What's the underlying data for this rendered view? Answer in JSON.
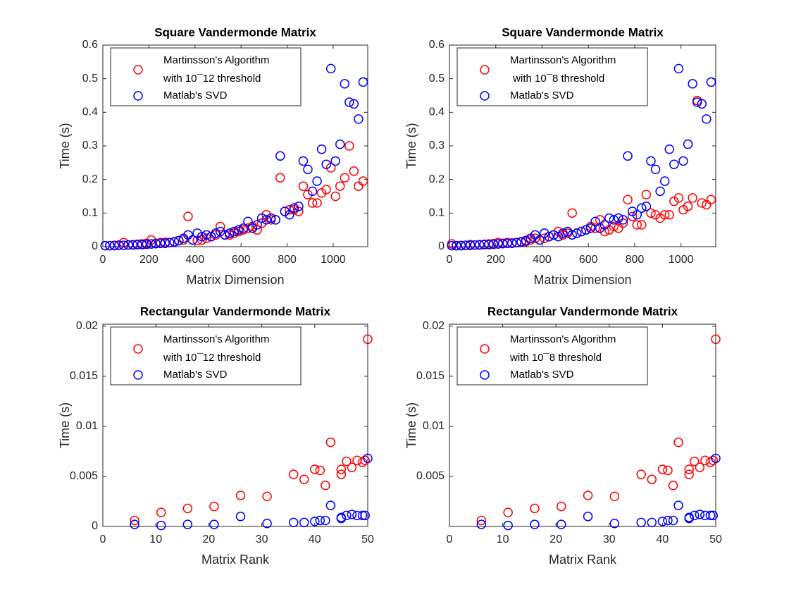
{
  "chart_data": [
    {
      "type": "scatter",
      "title": "Square Vandermonde Matrix",
      "xlabel": "Matrix Dimension",
      "ylabel": "Time (s)",
      "xlim": [
        0,
        1150
      ],
      "xticks": [
        0,
        200,
        400,
        600,
        800,
        1000
      ],
      "ylim": [
        0,
        0.6
      ],
      "yticks": [
        0,
        0.1,
        0.2,
        0.3,
        0.4,
        0.5,
        0.6
      ],
      "x": [
        10,
        30,
        50,
        70,
        90,
        110,
        130,
        150,
        170,
        190,
        210,
        230,
        250,
        270,
        290,
        310,
        330,
        350,
        370,
        390,
        410,
        430,
        450,
        470,
        490,
        510,
        530,
        550,
        570,
        590,
        610,
        630,
        650,
        670,
        690,
        710,
        730,
        750,
        770,
        790,
        810,
        830,
        850,
        870,
        890,
        910,
        930,
        950,
        970,
        990,
        1010,
        1030,
        1050,
        1070,
        1090,
        1110,
        1130
      ],
      "series": [
        {
          "name": "Martinsson's Algorithm\nwith 10¯12 threshold",
          "color": "#ff0000",
          "values": [
            0.003,
            0.003,
            0.004,
            0.005,
            0.012,
            0.005,
            0.006,
            0.007,
            0.008,
            0.01,
            0.02,
            0.01,
            0.012,
            0.013,
            0.012,
            0.015,
            0.018,
            0.02,
            0.09,
            0.02,
            0.018,
            0.02,
            0.025,
            0.03,
            0.035,
            0.06,
            0.035,
            0.035,
            0.04,
            0.045,
            0.05,
            0.055,
            0.06,
            0.05,
            0.07,
            0.095,
            0.08,
            0.08,
            0.205,
            0.105,
            0.11,
            0.11,
            0.105,
            0.18,
            0.155,
            0.13,
            0.13,
            0.16,
            0.17,
            0.235,
            0.15,
            0.18,
            0.205,
            0.3,
            0.225,
            0.18,
            0.195
          ]
        },
        {
          "name": "Matlab's SVD",
          "color": "#0000ff",
          "values": [
            0.003,
            0.003,
            0.003,
            0.004,
            0.004,
            0.005,
            0.005,
            0.006,
            0.006,
            0.007,
            0.008,
            0.009,
            0.01,
            0.01,
            0.012,
            0.014,
            0.018,
            0.025,
            0.035,
            0.02,
            0.04,
            0.03,
            0.035,
            0.03,
            0.04,
            0.045,
            0.035,
            0.04,
            0.045,
            0.05,
            0.055,
            0.075,
            0.055,
            0.065,
            0.085,
            0.08,
            0.085,
            0.08,
            0.27,
            0.105,
            0.095,
            0.115,
            0.12,
            0.255,
            0.23,
            0.165,
            0.195,
            0.29,
            0.245,
            0.53,
            0.255,
            0.305,
            0.485,
            0.43,
            0.425,
            0.38,
            0.49
          ]
        }
      ]
    },
    {
      "type": "scatter",
      "title": "Square Vandermonde Matrix",
      "xlabel": "Matrix Dimension",
      "ylabel": "Time (s)",
      "xlim": [
        0,
        1150
      ],
      "xticks": [
        0,
        200,
        400,
        600,
        800,
        1000
      ],
      "ylim": [
        0,
        0.6
      ],
      "yticks": [
        0,
        0.1,
        0.2,
        0.3,
        0.4,
        0.5,
        0.6
      ],
      "x": [
        10,
        30,
        50,
        70,
        90,
        110,
        130,
        150,
        170,
        190,
        210,
        230,
        250,
        270,
        290,
        310,
        330,
        350,
        370,
        390,
        410,
        430,
        450,
        470,
        490,
        510,
        530,
        550,
        570,
        590,
        610,
        630,
        650,
        670,
        690,
        710,
        730,
        750,
        770,
        790,
        810,
        830,
        850,
        870,
        890,
        910,
        930,
        950,
        970,
        990,
        1010,
        1030,
        1050,
        1070,
        1090,
        1110,
        1130
      ],
      "series": [
        {
          "name": "Martinsson's Algorithm\n with 10¯8 threshold",
          "color": "#ff0000",
          "values": [
            0.008,
            0.003,
            0.004,
            0.004,
            0.006,
            0.005,
            0.006,
            0.007,
            0.008,
            0.009,
            0.012,
            0.01,
            0.012,
            0.011,
            0.012,
            0.015,
            0.015,
            0.02,
            0.025,
            0.02,
            0.025,
            0.03,
            0.035,
            0.045,
            0.035,
            0.04,
            0.1,
            0.04,
            0.045,
            0.05,
            0.06,
            0.055,
            0.08,
            0.045,
            0.05,
            0.06,
            0.055,
            0.07,
            0.14,
            0.09,
            0.065,
            0.065,
            0.155,
            0.1,
            0.095,
            0.085,
            0.095,
            0.095,
            0.135,
            0.145,
            0.11,
            0.12,
            0.145,
            0.435,
            0.13,
            0.125,
            0.14
          ]
        },
        {
          "name": "Matlab's SVD",
          "color": "#0000ff",
          "values": [
            0.003,
            0.003,
            0.003,
            0.004,
            0.004,
            0.005,
            0.005,
            0.006,
            0.006,
            0.007,
            0.008,
            0.009,
            0.01,
            0.01,
            0.012,
            0.014,
            0.018,
            0.025,
            0.035,
            0.02,
            0.04,
            0.03,
            0.035,
            0.03,
            0.04,
            0.045,
            0.035,
            0.04,
            0.045,
            0.05,
            0.055,
            0.075,
            0.055,
            0.065,
            0.085,
            0.08,
            0.085,
            0.08,
            0.27,
            0.105,
            0.095,
            0.115,
            0.12,
            0.255,
            0.23,
            0.165,
            0.195,
            0.29,
            0.245,
            0.53,
            0.255,
            0.305,
            0.485,
            0.43,
            0.425,
            0.38,
            0.49
          ]
        }
      ]
    },
    {
      "type": "scatter",
      "title": "Rectangular Vandermonde Matrix",
      "xlabel": "Matrix Rank",
      "ylabel": "Time (s)",
      "xlim": [
        0,
        50
      ],
      "xticks": [
        0,
        10,
        20,
        30,
        40,
        50
      ],
      "ylim": [
        0,
        0.0202
      ],
      "yticks": [
        0,
        0.005,
        0.01,
        0.015,
        0.02
      ],
      "x": [
        6,
        11,
        16,
        21,
        26,
        31,
        36,
        38,
        40,
        41,
        42,
        43,
        45,
        45,
        46,
        47,
        48,
        49,
        49.5,
        50
      ],
      "series": [
        {
          "name": "Martinsson's Algorithm\nwith 10¯12 threshold",
          "color": "#ff0000",
          "values": [
            0.0006,
            0.0014,
            0.0018,
            0.002,
            0.0031,
            0.003,
            0.0052,
            0.0047,
            0.0057,
            0.0056,
            0.0041,
            0.0084,
            0.0052,
            0.0057,
            0.0065,
            0.0059,
            0.0066,
            0.0064,
            0.0066,
            0.0187
          ]
        },
        {
          "name": "Matlab's SVD",
          "color": "#0000ff",
          "values": [
            0.0002,
            0.0001,
            0.0002,
            0.0002,
            0.001,
            0.0003,
            0.0004,
            0.0004,
            0.0005,
            0.0006,
            0.0006,
            0.0021,
            0.0009,
            0.0008,
            0.0011,
            0.0012,
            0.0011,
            0.0011,
            0.0011,
            0.0068
          ]
        }
      ]
    },
    {
      "type": "scatter",
      "title": "Rectangular Vandermonde Matrix",
      "xlabel": "Matrix Rank",
      "ylabel": "Time (s)",
      "xlim": [
        0,
        50
      ],
      "xticks": [
        0,
        10,
        20,
        30,
        40,
        50
      ],
      "ylim": [
        0,
        0.0202
      ],
      "yticks": [
        0.005,
        0.01,
        0.015,
        0.02
      ],
      "x": [
        6,
        11,
        16,
        21,
        26,
        31,
        36,
        38,
        40,
        41,
        42,
        43,
        45,
        45,
        46,
        47,
        48,
        49,
        49.5,
        50
      ],
      "series": [
        {
          "name": "Martinsson's Algorithm\nwith 10¯8 threshold",
          "color": "#ff0000",
          "values": [
            0.0006,
            0.0014,
            0.0018,
            0.002,
            0.0031,
            0.003,
            0.0052,
            0.0047,
            0.0057,
            0.0056,
            0.0041,
            0.0084,
            0.0052,
            0.0057,
            0.0065,
            0.0059,
            0.0066,
            0.0064,
            0.0066,
            0.0187
          ]
        },
        {
          "name": "Matlab's SVD",
          "color": "#0000ff",
          "values": [
            0.0002,
            0.0001,
            0.0002,
            0.0002,
            0.001,
            0.0003,
            0.0004,
            0.0004,
            0.0005,
            0.0006,
            0.0006,
            0.0021,
            0.0009,
            0.0008,
            0.0011,
            0.0012,
            0.0011,
            0.0011,
            0.0011,
            0.0068
          ]
        }
      ]
    }
  ]
}
